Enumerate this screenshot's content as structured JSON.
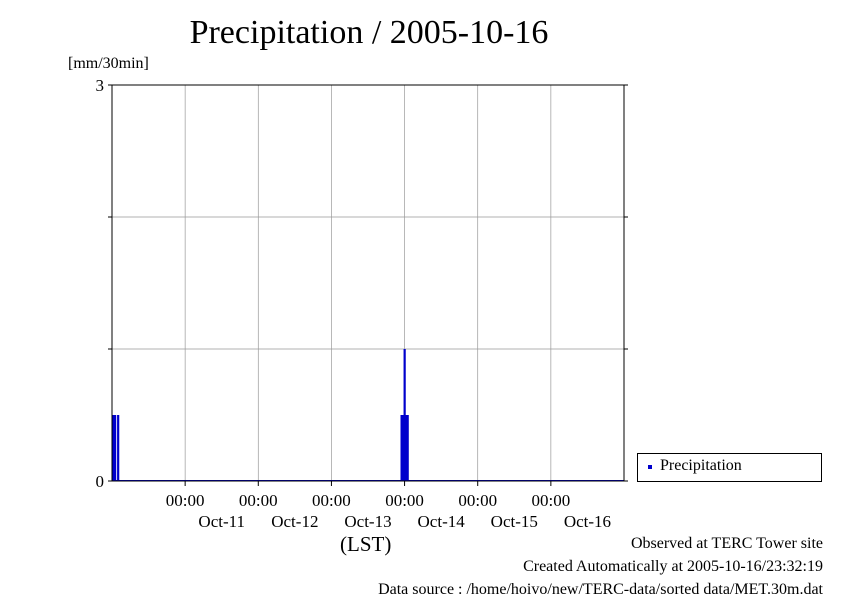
{
  "title": "Precipitation / 2005-10-16",
  "unit_label": "[mm/30min]",
  "xlabel": "(LST)",
  "legend": {
    "label": "Precipitation",
    "color": "#0000cc"
  },
  "footer": {
    "observed": "Observed at TERC Tower site",
    "created": "Created Automatically at 2005-10-16/23:32:19",
    "source": "Data source : /home/hoivo/new/TERC-data/sorted  data/MET.30m.dat"
  },
  "chart_data": {
    "type": "bar",
    "title": "Precipitation / 2005-10-16",
    "ylabel": "[mm/30min]",
    "xlabel": "(LST)",
    "ylim": [
      0,
      3
    ],
    "y_ticks": [
      0,
      3
    ],
    "y_tick_labels": [
      "0",
      "3"
    ],
    "xlim": [
      "2005-10-10T00:00",
      "2005-10-17T00:00"
    ],
    "x_ticks": [
      {
        "time": "2005-10-11T00:00",
        "time_label": "00:00",
        "date_label": "Oct-11"
      },
      {
        "time": "2005-10-12T00:00",
        "time_label": "00:00",
        "date_label": "Oct-12"
      },
      {
        "time": "2005-10-13T00:00",
        "time_label": "00:00",
        "date_label": "Oct-13"
      },
      {
        "time": "2005-10-14T00:00",
        "time_label": "00:00",
        "date_label": "Oct-14"
      },
      {
        "time": "2005-10-15T00:00",
        "time_label": "00:00",
        "date_label": "Oct-15"
      },
      {
        "time": "2005-10-16T00:00",
        "time_label": "00:00",
        "date_label": "Oct-16"
      }
    ],
    "grid": true,
    "legend_position": "right",
    "series": [
      {
        "name": "Precipitation",
        "color": "#0000cc",
        "points": [
          {
            "x": "2005-10-10T00:00",
            "y": 0.5
          },
          {
            "x": "2005-10-10T00:30",
            "y": 0.5
          },
          {
            "x": "2005-10-10T01:30",
            "y": 0.5
          },
          {
            "x": "2005-10-13T22:30",
            "y": 0.5
          },
          {
            "x": "2005-10-13T23:00",
            "y": 0.5
          },
          {
            "x": "2005-10-13T23:30",
            "y": 1.0
          },
          {
            "x": "2005-10-14T00:00",
            "y": 0.5
          },
          {
            "x": "2005-10-14T00:30",
            "y": 0.5
          }
        ]
      }
    ]
  }
}
